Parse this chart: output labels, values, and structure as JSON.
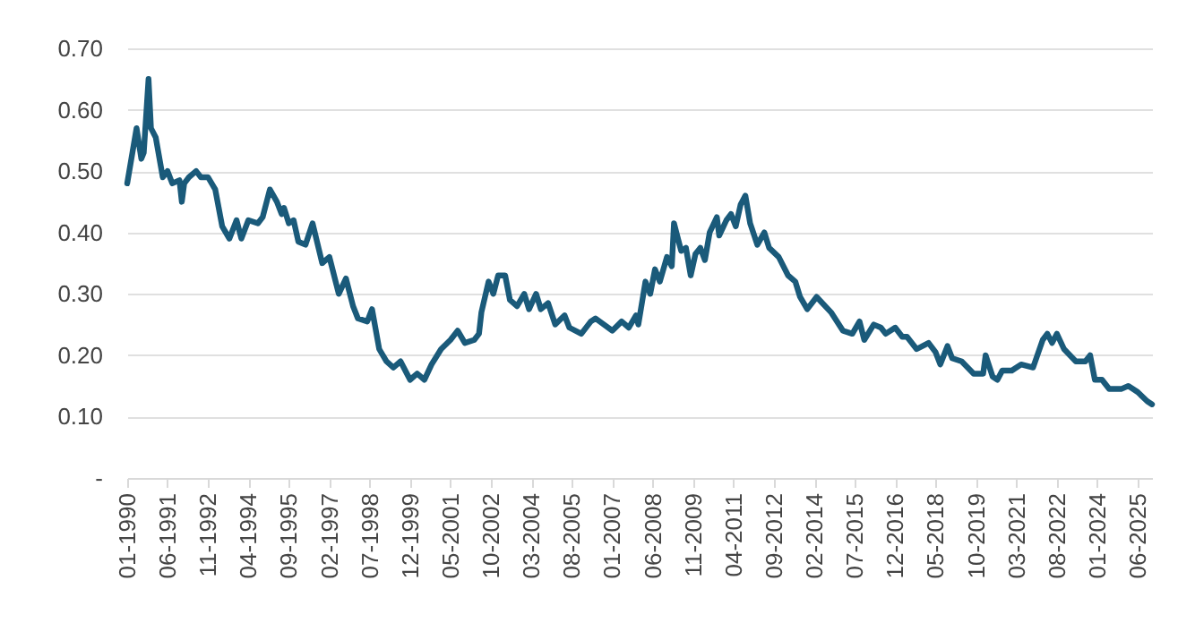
{
  "chart_data": {
    "type": "line",
    "xlim": [
      "1990-01",
      "2025-12"
    ],
    "ylim": [
      0,
      0.7
    ],
    "xticks": [
      {
        "value": "1990-01",
        "label": "01-1990"
      },
      {
        "value": "1991-06",
        "label": "06-1991"
      },
      {
        "value": "1992-11",
        "label": "11-1992"
      },
      {
        "value": "1994-04",
        "label": "04-1994"
      },
      {
        "value": "1995-09",
        "label": "09-1995"
      },
      {
        "value": "1997-02",
        "label": "02-1997"
      },
      {
        "value": "1998-07",
        "label": "07-1998"
      },
      {
        "value": "1999-12",
        "label": "12-1999"
      },
      {
        "value": "2001-05",
        "label": "05-2001"
      },
      {
        "value": "2002-10",
        "label": "10-2002"
      },
      {
        "value": "2004-03",
        "label": "03-2004"
      },
      {
        "value": "2005-08",
        "label": "08-2005"
      },
      {
        "value": "2007-01",
        "label": "01-2007"
      },
      {
        "value": "2008-06",
        "label": "06-2008"
      },
      {
        "value": "2009-11",
        "label": "11-2009"
      },
      {
        "value": "2011-04",
        "label": "04-2011"
      },
      {
        "value": "2012-09",
        "label": "09-2012"
      },
      {
        "value": "2014-02",
        "label": "02-2014"
      },
      {
        "value": "2015-07",
        "label": "07-2015"
      },
      {
        "value": "2016-12",
        "label": "12-2016"
      },
      {
        "value": "2018-05",
        "label": "05-2018"
      },
      {
        "value": "2019-10",
        "label": "10-2019"
      },
      {
        "value": "2021-03",
        "label": "03-2021"
      },
      {
        "value": "2022-08",
        "label": "08-2022"
      },
      {
        "value": "2024-01",
        "label": "01-2024"
      },
      {
        "value": "2025-06",
        "label": "06-2025"
      }
    ],
    "yticks": [
      {
        "value": 0,
        "label": "-"
      },
      {
        "value": 0.1,
        "label": "0.10"
      },
      {
        "value": 0.2,
        "label": "0.20"
      },
      {
        "value": 0.3,
        "label": "0.30"
      },
      {
        "value": 0.4,
        "label": "0.40"
      },
      {
        "value": 0.5,
        "label": "0.50"
      },
      {
        "value": 0.6,
        "label": "0.60"
      },
      {
        "value": 0.7,
        "label": "0.70"
      }
    ],
    "grid": "y",
    "x": [
      "1990-01",
      "1990-05",
      "1990-07",
      "1990-08",
      "1990-10",
      "1990-11",
      "1991-01",
      "1991-04",
      "1991-06",
      "1991-08",
      "1991-11",
      "1991-12",
      "1992-01",
      "1992-03",
      "1992-06",
      "1992-08",
      "1992-11",
      "1993-02",
      "1993-05",
      "1993-08",
      "1993-11",
      "1994-01",
      "1994-04",
      "1994-08",
      "1994-10",
      "1995-01",
      "1995-04",
      "1995-06",
      "1995-07",
      "1995-09",
      "1995-11",
      "1996-01",
      "1996-04",
      "1996-07",
      "1996-11",
      "1997-02",
      "1997-06",
      "1997-09",
      "1997-12",
      "1998-02",
      "1998-06",
      "1998-08",
      "1998-11",
      "1999-02",
      "1999-05",
      "1999-08",
      "1999-12",
      "2000-03",
      "2000-06",
      "2000-09",
      "2001-01",
      "2001-05",
      "2001-08",
      "2001-11",
      "2002-03",
      "2002-05",
      "2002-06",
      "2002-09",
      "2002-11",
      "2003-01",
      "2003-04",
      "2003-06",
      "2003-09",
      "2003-12",
      "2004-02",
      "2004-05",
      "2004-07",
      "2004-10",
      "2005-01",
      "2005-05",
      "2005-07",
      "2005-12",
      "2006-04",
      "2006-06",
      "2007-01",
      "2007-05",
      "2007-08",
      "2007-11",
      "2007-12",
      "2008-03",
      "2008-05",
      "2008-07",
      "2008-09",
      "2008-12",
      "2009-02",
      "2009-03",
      "2009-06",
      "2009-08",
      "2009-10",
      "2009-12",
      "2010-02",
      "2010-04",
      "2010-06",
      "2010-09",
      "2010-10",
      "2011-01",
      "2011-03",
      "2011-05",
      "2011-07",
      "2011-09",
      "2011-11",
      "2012-02",
      "2012-05",
      "2012-07",
      "2012-11",
      "2013-03",
      "2013-06",
      "2013-08",
      "2013-11",
      "2014-03",
      "2014-09",
      "2015-02",
      "2015-06",
      "2015-09",
      "2015-11",
      "2016-03",
      "2016-06",
      "2016-08",
      "2016-12",
      "2017-03",
      "2017-05",
      "2017-09",
      "2018-02",
      "2018-05",
      "2018-07",
      "2018-10",
      "2018-12",
      "2019-04",
      "2019-09",
      "2020-01",
      "2020-02",
      "2020-05",
      "2020-07",
      "2020-09",
      "2021-01",
      "2021-05",
      "2021-10",
      "2022-02",
      "2022-04",
      "2022-06",
      "2022-08",
      "2022-11",
      "2023-04",
      "2023-08",
      "2023-10",
      "2023-12",
      "2024-03",
      "2024-06",
      "2024-11",
      "2025-02",
      "2025-06",
      "2025-10",
      "2025-12"
    ],
    "series": [
      {
        "color": "#1a5a7a",
        "values": [
          0.48,
          0.57,
          0.52,
          0.53,
          0.65,
          0.57,
          0.555,
          0.49,
          0.5,
          0.48,
          0.485,
          0.45,
          0.48,
          0.49,
          0.5,
          0.49,
          0.49,
          0.47,
          0.41,
          0.39,
          0.42,
          0.39,
          0.42,
          0.415,
          0.425,
          0.47,
          0.45,
          0.43,
          0.44,
          0.415,
          0.42,
          0.385,
          0.38,
          0.415,
          0.35,
          0.36,
          0.3,
          0.325,
          0.28,
          0.26,
          0.255,
          0.275,
          0.21,
          0.19,
          0.18,
          0.19,
          0.16,
          0.17,
          0.16,
          0.185,
          0.21,
          0.225,
          0.24,
          0.22,
          0.225,
          0.235,
          0.27,
          0.32,
          0.3,
          0.33,
          0.33,
          0.29,
          0.28,
          0.3,
          0.275,
          0.3,
          0.275,
          0.285,
          0.25,
          0.265,
          0.245,
          0.235,
          0.255,
          0.26,
          0.24,
          0.255,
          0.245,
          0.265,
          0.25,
          0.32,
          0.3,
          0.34,
          0.32,
          0.36,
          0.345,
          0.415,
          0.37,
          0.375,
          0.33,
          0.365,
          0.375,
          0.355,
          0.4,
          0.425,
          0.395,
          0.42,
          0.43,
          0.41,
          0.445,
          0.46,
          0.415,
          0.38,
          0.4,
          0.375,
          0.36,
          0.33,
          0.32,
          0.295,
          0.275,
          0.295,
          0.27,
          0.24,
          0.235,
          0.255,
          0.225,
          0.25,
          0.245,
          0.235,
          0.245,
          0.23,
          0.23,
          0.21,
          0.22,
          0.205,
          0.185,
          0.215,
          0.195,
          0.19,
          0.17,
          0.17,
          0.2,
          0.165,
          0.16,
          0.175,
          0.175,
          0.185,
          0.18,
          0.225,
          0.235,
          0.22,
          0.235,
          0.21,
          0.19,
          0.19,
          0.2,
          0.16,
          0.16,
          0.145,
          0.145,
          0.15,
          0.14,
          0.125,
          0.12
        ]
      }
    ]
  }
}
